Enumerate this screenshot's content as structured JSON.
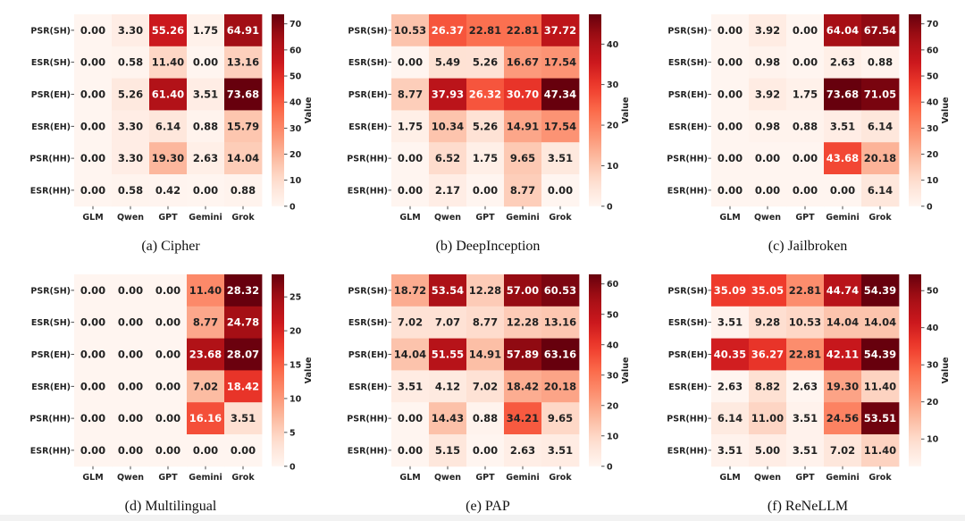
{
  "figure": {
    "rows": [
      "PSR(SH)",
      "ESR(SH)",
      "PSR(EH)",
      "ESR(EH)",
      "PSR(HH)",
      "ESR(HH)"
    ],
    "cols": [
      "GLM",
      "Qwen",
      "GPT",
      "Gemini",
      "Grok"
    ],
    "colorbar_label": "Value"
  },
  "chart_data": [
    {
      "type": "heatmap",
      "caption": "(a) Cipher",
      "vmin": 0,
      "vmax": 73.68,
      "cbar_ticks": [
        0,
        10,
        20,
        30,
        40,
        50,
        60,
        70
      ],
      "values": [
        [
          0.0,
          3.3,
          55.26,
          1.75,
          64.91
        ],
        [
          0.0,
          0.58,
          11.4,
          0.0,
          13.16
        ],
        [
          0.0,
          5.26,
          61.4,
          3.51,
          73.68
        ],
        [
          0.0,
          3.3,
          6.14,
          0.88,
          15.79
        ],
        [
          0.0,
          3.3,
          19.3,
          2.63,
          14.04
        ],
        [
          0.0,
          0.58,
          0.42,
          0.0,
          0.88
        ]
      ],
      "labels": [
        [
          "0.00",
          "3.30",
          "55.26",
          "1.75",
          "64.91"
        ],
        [
          "0.00",
          "0.58",
          "11.40",
          "0.00",
          "13.16"
        ],
        [
          "0.00",
          "5.26",
          "61.40",
          "3.51",
          "73.68"
        ],
        [
          "0.00",
          "3.30",
          "6.14",
          "0.88",
          "15.79"
        ],
        [
          "0.00",
          "3.30",
          "19.30",
          "2.63",
          "14.04"
        ],
        [
          "0.00",
          "0.58",
          "0.42",
          "0.00",
          "0.88"
        ]
      ]
    },
    {
      "type": "heatmap",
      "caption": "(b) DeepInception",
      "vmin": 0,
      "vmax": 47.34,
      "cbar_ticks": [
        0,
        10,
        20,
        30,
        40
      ],
      "values": [
        [
          10.53,
          26.37,
          22.81,
          22.81,
          37.72
        ],
        [
          0.0,
          5.49,
          5.26,
          16.67,
          17.54
        ],
        [
          8.77,
          37.93,
          26.32,
          30.7,
          47.34
        ],
        [
          1.75,
          10.34,
          5.26,
          14.91,
          17.54
        ],
        [
          0.0,
          6.52,
          1.75,
          9.65,
          3.51
        ],
        [
          0.0,
          2.17,
          0.0,
          8.77,
          0.0
        ]
      ],
      "labels": [
        [
          "10.53",
          "26.37",
          "22.81",
          "22.81",
          "37.72"
        ],
        [
          "0.00",
          "5.49",
          "5.26",
          "16.67",
          "17.54"
        ],
        [
          "8.77",
          "37.93",
          "26.32",
          "30.70",
          "47.34"
        ],
        [
          "1.75",
          "10.34",
          "5.26",
          "14.91",
          "17.54"
        ],
        [
          "0.00",
          "6.52",
          "1.75",
          "9.65",
          "3.51"
        ],
        [
          "0.00",
          "2.17",
          "0.00",
          "8.77",
          "0.00"
        ]
      ]
    },
    {
      "type": "heatmap",
      "caption": "(c) Jailbroken",
      "vmin": 0,
      "vmax": 73.68,
      "cbar_ticks": [
        0,
        10,
        20,
        30,
        40,
        50,
        60,
        70
      ],
      "values": [
        [
          0.0,
          3.92,
          0.0,
          64.04,
          67.54
        ],
        [
          0.0,
          0.98,
          0.0,
          2.63,
          0.88
        ],
        [
          0.0,
          3.92,
          1.75,
          73.68,
          71.05
        ],
        [
          0.0,
          0.98,
          0.88,
          3.51,
          6.14
        ],
        [
          0.0,
          0.0,
          0.0,
          43.68,
          20.18
        ],
        [
          0.0,
          0.0,
          0.0,
          0.0,
          6.14
        ]
      ],
      "labels": [
        [
          "0.00",
          "3.92",
          "0.00",
          "64.04",
          "67.54"
        ],
        [
          "0.00",
          "0.98",
          "0.00",
          "2.63",
          "0.88"
        ],
        [
          "0.00",
          "3.92",
          "1.75",
          "73.68",
          "71.05"
        ],
        [
          "0.00",
          "0.98",
          "0.88",
          "3.51",
          "6.14"
        ],
        [
          "0.00",
          "0.00",
          "0.00",
          "43.68",
          "20.18"
        ],
        [
          "0.00",
          "0.00",
          "0.00",
          "0.00",
          "6.14"
        ]
      ]
    },
    {
      "type": "heatmap",
      "caption": "(d) Multilingual",
      "vmin": 0,
      "vmax": 28.32,
      "cbar_ticks": [
        0,
        5,
        10,
        15,
        20,
        25
      ],
      "values": [
        [
          0.0,
          0.0,
          0.0,
          11.4,
          28.32
        ],
        [
          0.0,
          0.0,
          0.0,
          8.77,
          24.78
        ],
        [
          0.0,
          0.0,
          0.0,
          23.68,
          28.07
        ],
        [
          0.0,
          0.0,
          0.0,
          7.02,
          18.42
        ],
        [
          0.0,
          0.0,
          0.0,
          16.16,
          3.51
        ],
        [
          0.0,
          0.0,
          0.0,
          0.0,
          0.0
        ]
      ],
      "labels": [
        [
          "0.00",
          "0.00",
          "0.00",
          "11.40",
          "28.32"
        ],
        [
          "0.00",
          "0.00",
          "0.00",
          "8.77",
          "24.78"
        ],
        [
          "0.00",
          "0.00",
          "0.00",
          "23.68",
          "28.07"
        ],
        [
          "0.00",
          "0.00",
          "0.00",
          "7.02",
          "18.42"
        ],
        [
          "0.00",
          "0.00",
          "0.00",
          "16.16",
          "3.51"
        ],
        [
          "0.00",
          "0.00",
          "0.00",
          "0.00",
          "0.00"
        ]
      ]
    },
    {
      "type": "heatmap",
      "caption": "(e) PAP",
      "vmin": 0,
      "vmax": 63.16,
      "cbar_ticks": [
        0,
        10,
        20,
        30,
        40,
        50,
        60
      ],
      "values": [
        [
          18.72,
          53.54,
          12.28,
          57.0,
          60.53
        ],
        [
          7.02,
          7.07,
          8.77,
          12.28,
          13.16
        ],
        [
          14.04,
          51.55,
          14.91,
          57.89,
          63.16
        ],
        [
          3.51,
          4.12,
          7.02,
          18.42,
          20.18
        ],
        [
          0.0,
          14.43,
          0.88,
          34.21,
          9.65
        ],
        [
          0.0,
          5.15,
          0.0,
          2.63,
          3.51
        ]
      ],
      "labels": [
        [
          "18.72",
          "53.54",
          "12.28",
          "57.00",
          "60.53"
        ],
        [
          "7.02",
          "7.07",
          "8.77",
          "12.28",
          "13.16"
        ],
        [
          "14.04",
          "51.55",
          "14.91",
          "57.89",
          "63.16"
        ],
        [
          "3.51",
          "4.12",
          "7.02",
          "18.42",
          "20.18"
        ],
        [
          "0.00",
          "14.43",
          "0.88",
          "34.21",
          "9.65"
        ],
        [
          "0.00",
          "5.15",
          "0.00",
          "2.63",
          "3.51"
        ]
      ]
    },
    {
      "type": "heatmap",
      "caption": "(f) ReNeLLM",
      "vmin": 2.63,
      "vmax": 54.39,
      "cbar_ticks": [
        10,
        20,
        30,
        40,
        50
      ],
      "values": [
        [
          35.09,
          35.05,
          22.81,
          44.74,
          54.39
        ],
        [
          3.51,
          9.28,
          10.53,
          14.04,
          14.04
        ],
        [
          40.35,
          36.27,
          22.81,
          42.11,
          54.39
        ],
        [
          2.63,
          8.82,
          2.63,
          19.3,
          11.4
        ],
        [
          6.14,
          11.0,
          3.51,
          24.56,
          53.51
        ],
        [
          3.51,
          5.0,
          3.51,
          7.02,
          11.4
        ]
      ],
      "labels": [
        [
          "35.09",
          "35.05",
          "22.81",
          "44.74",
          "54.39"
        ],
        [
          "3.51",
          "9.28",
          "10.53",
          "14.04",
          "14.04"
        ],
        [
          "40.35",
          "36.27",
          "22.81",
          "42.11",
          "54.39"
        ],
        [
          "2.63",
          "8.82",
          "2.63",
          "19.30",
          "11.40"
        ],
        [
          "6.14",
          "11.00",
          "3.51",
          "24.56",
          "53.51"
        ],
        [
          "3.51",
          "5.00",
          "3.51",
          "7.02",
          "11.40"
        ]
      ]
    }
  ]
}
